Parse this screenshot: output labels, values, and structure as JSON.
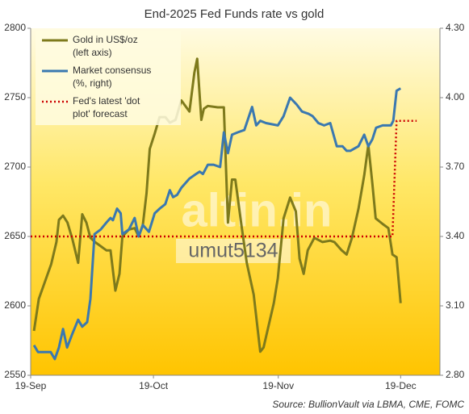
{
  "chart_data": {
    "type": "line",
    "title": "End-2025 Fed Funds rate vs gold",
    "source": "Source: BullionVault via LBMA, CME, FOMC",
    "watermark": [
      "altin.in",
      "umut5134"
    ],
    "xlim": [
      0,
      100
    ],
    "xticks": [
      {
        "value": 0,
        "label": "19-Sep"
      },
      {
        "value": 30,
        "label": "19-Oct"
      },
      {
        "value": 60.5,
        "label": "19-Nov"
      },
      {
        "value": 90.4,
        "label": "19-Dec"
      }
    ],
    "ylim": [
      2550,
      2800
    ],
    "yticks": [
      2550,
      2600,
      2650,
      2700,
      2750,
      2800
    ],
    "y2lim": [
      2.8,
      4.3
    ],
    "y2ticks": [
      {
        "value": 2.8,
        "label": "2.80"
      },
      {
        "value": 3.1,
        "label": "3.10"
      },
      {
        "value": 3.4,
        "label": "3.40"
      },
      {
        "value": 3.7,
        "label": "3.70"
      },
      {
        "value": 4.0,
        "label": "4.00"
      },
      {
        "value": 4.3,
        "label": "4.30"
      }
    ],
    "series": [
      {
        "name": "Gold in US$/oz\n(left axis)",
        "color": "#7e7a1c",
        "axis": "y",
        "x": [
          0.8,
          2,
          5,
          6.3,
          6.9,
          7.9,
          9,
          10.2,
          11.6,
          12.6,
          13.6,
          14.6,
          15.7,
          17.1,
          18.5,
          19.5,
          20.7,
          21.7,
          22.4,
          24,
          25.4,
          26.4,
          27.4,
          28.3,
          29.1,
          30.3,
          31.5,
          32.9,
          34,
          35.4,
          36.8,
          38.8,
          40,
          40.7,
          41.7,
          42.3,
          43.3,
          45.7,
          47.2,
          48.2,
          49.2,
          50,
          51.6,
          52.8,
          54.5,
          56.1,
          56.9,
          59.4,
          60.4,
          61.8,
          63.4,
          64.8,
          65.7,
          66.7,
          67.7,
          69.3,
          71.3,
          73.2,
          74.2,
          76,
          77.2,
          78.5,
          80.1,
          81.5,
          82.5,
          83.5,
          84.3,
          86,
          87.4,
          88.4,
          89.4,
          90.4
        ],
        "values": [
          2582,
          2605,
          2630,
          2646,
          2662,
          2665,
          2660,
          2648,
          2631,
          2666,
          2660,
          2649,
          2646,
          2643,
          2640,
          2640,
          2611,
          2623,
          2650,
          2655,
          2656,
          2650,
          2658,
          2681,
          2713,
          2724,
          2736,
          2736,
          2732,
          2734,
          2748,
          2740,
          2768,
          2778,
          2734,
          2742,
          2744,
          2743,
          2743,
          2660,
          2691,
          2691,
          2656,
          2631,
          2608,
          2567,
          2570,
          2602,
          2620,
          2663,
          2678,
          2668,
          2634,
          2623,
          2640,
          2649,
          2646,
          2647,
          2646,
          2640,
          2637,
          2649,
          2670,
          2694,
          2716,
          2688,
          2663,
          2659,
          2656,
          2637,
          2635,
          2602
        ]
      },
      {
        "name": "Market consensus\n(%, right)",
        "color": "#3a78b0",
        "axis": "y2",
        "x": [
          0.8,
          1.8,
          3.3,
          4.9,
          5.9,
          6.9,
          7.9,
          8.9,
          10.2,
          11.6,
          12.6,
          13.8,
          14.6,
          15.6,
          17.1,
          18.5,
          19.5,
          20.1,
          21.1,
          22,
          22.4,
          24,
          25.4,
          26.4,
          27.4,
          28.9,
          30.3,
          31.5,
          32.9,
          34,
          34.8,
          35.8,
          36.8,
          38.8,
          40.4,
          41.3,
          42.1,
          43.3,
          44.7,
          46.3,
          47.2,
          48.2,
          49.2,
          50.6,
          52.2,
          54.1,
          55.1,
          56.1,
          57.5,
          60.4,
          61.8,
          63.4,
          65,
          66.3,
          67.9,
          68.9,
          70.3,
          71.7,
          73.2,
          74.8,
          76.2,
          77.2,
          78.1,
          79.1,
          80.1,
          81.5,
          82.5,
          83.5,
          84.4,
          86,
          88,
          88.6,
          89.4,
          90.4
        ],
        "values": [
          2.93,
          2.9,
          2.9,
          2.9,
          2.87,
          2.92,
          3.0,
          2.92,
          2.98,
          3.04,
          3.01,
          3.03,
          3.13,
          3.41,
          3.43,
          3.46,
          3.48,
          3.47,
          3.52,
          3.5,
          3.41,
          3.43,
          3.48,
          3.4,
          3.45,
          3.42,
          3.5,
          3.52,
          3.54,
          3.6,
          3.57,
          3.58,
          3.61,
          3.65,
          3.67,
          3.68,
          3.67,
          3.71,
          3.71,
          3.7,
          3.85,
          3.76,
          3.84,
          3.85,
          3.86,
          3.96,
          3.88,
          3.9,
          3.89,
          3.88,
          3.92,
          4.0,
          3.97,
          3.94,
          3.93,
          3.92,
          3.89,
          3.88,
          3.89,
          3.79,
          3.79,
          3.77,
          3.77,
          3.78,
          3.79,
          3.84,
          3.79,
          3.82,
          3.87,
          3.88,
          3.88,
          3.9,
          4.03,
          4.04
        ]
      },
      {
        "name": "Fed's latest 'dot\nplot' forecast",
        "color": "#cc0000",
        "axis": "y2",
        "dash": "dotted",
        "x": [
          0,
          88.4,
          89.4,
          94.3
        ],
        "values": [
          3.4,
          3.4,
          3.9,
          3.9
        ]
      }
    ]
  }
}
